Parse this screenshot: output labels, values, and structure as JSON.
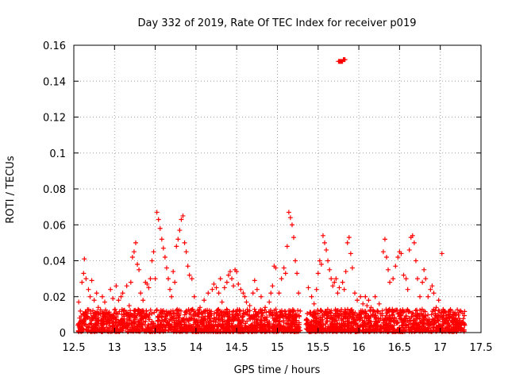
{
  "chart_data": {
    "type": "scatter",
    "title": "Day 332 of 2019, Rate Of TEC Index for receiver p019",
    "xlabel": "GPS time / hours",
    "ylabel": "ROTI / TECUs",
    "xlim": [
      12.5,
      17.5
    ],
    "ylim": [
      0,
      0.16
    ],
    "x_ticks": [
      12.5,
      13,
      13.5,
      14,
      14.5,
      15,
      15.5,
      16,
      16.5,
      17,
      17.5
    ],
    "x_tick_labels": [
      "12.5",
      "13",
      "13.5",
      "14",
      "14.5",
      "15",
      "15.5",
      "16",
      "16.5",
      "17",
      "17.5"
    ],
    "y_ticks": [
      0,
      0.02,
      0.04,
      0.06,
      0.08,
      0.1,
      0.12,
      0.14,
      0.16
    ],
    "y_tick_labels": [
      "0",
      "0.02",
      "0.04",
      "0.06",
      "0.08",
      "0.1",
      "0.12",
      "0.14",
      "0.16"
    ],
    "grid": true,
    "marker": "+",
    "color": "#ff0000",
    "series": [
      {
        "name": "ROTI",
        "points": [
          [
            12.56,
            0.017
          ],
          [
            12.58,
            0.012
          ],
          [
            12.6,
            0.028
          ],
          [
            12.62,
            0.033
          ],
          [
            12.63,
            0.041
          ],
          [
            12.65,
            0.03
          ],
          [
            12.68,
            0.024
          ],
          [
            12.7,
            0.02
          ],
          [
            12.72,
            0.029
          ],
          [
            12.75,
            0.018
          ],
          [
            12.78,
            0.022
          ],
          [
            12.8,
            0.014
          ],
          [
            12.85,
            0.02
          ],
          [
            12.88,
            0.017
          ],
          [
            12.9,
            0.011
          ],
          [
            12.95,
            0.024
          ],
          [
            12.98,
            0.019
          ],
          [
            13.02,
            0.026
          ],
          [
            13.05,
            0.018
          ],
          [
            13.08,
            0.02
          ],
          [
            13.1,
            0.022
          ],
          [
            13.15,
            0.026
          ],
          [
            13.18,
            0.015
          ],
          [
            13.2,
            0.028
          ],
          [
            13.22,
            0.042
          ],
          [
            13.24,
            0.045
          ],
          [
            13.26,
            0.05
          ],
          [
            13.28,
            0.038
          ],
          [
            13.3,
            0.035
          ],
          [
            13.32,
            0.022
          ],
          [
            13.35,
            0.018
          ],
          [
            13.38,
            0.028
          ],
          [
            13.4,
            0.027
          ],
          [
            13.42,
            0.025
          ],
          [
            13.44,
            0.03
          ],
          [
            13.46,
            0.04
          ],
          [
            13.48,
            0.045
          ],
          [
            13.5,
            0.03
          ],
          [
            13.52,
            0.067
          ],
          [
            13.54,
            0.063
          ],
          [
            13.56,
            0.058
          ],
          [
            13.58,
            0.052
          ],
          [
            13.6,
            0.047
          ],
          [
            13.62,
            0.042
          ],
          [
            13.64,
            0.036
          ],
          [
            13.66,
            0.03
          ],
          [
            13.68,
            0.024
          ],
          [
            13.7,
            0.02
          ],
          [
            13.72,
            0.034
          ],
          [
            13.74,
            0.028
          ],
          [
            13.76,
            0.048
          ],
          [
            13.78,
            0.052
          ],
          [
            13.8,
            0.057
          ],
          [
            13.82,
            0.063
          ],
          [
            13.84,
            0.065
          ],
          [
            13.86,
            0.05
          ],
          [
            13.88,
            0.045
          ],
          [
            13.9,
            0.037
          ],
          [
            13.92,
            0.032
          ],
          [
            13.95,
            0.03
          ],
          [
            13.98,
            0.02
          ],
          [
            14.05,
            0.014
          ],
          [
            14.1,
            0.018
          ],
          [
            14.15,
            0.022
          ],
          [
            14.2,
            0.024
          ],
          [
            14.22,
            0.027
          ],
          [
            14.25,
            0.025
          ],
          [
            14.28,
            0.022
          ],
          [
            14.3,
            0.03
          ],
          [
            14.32,
            0.017
          ],
          [
            14.35,
            0.025
          ],
          [
            14.38,
            0.028
          ],
          [
            14.4,
            0.032
          ],
          [
            14.42,
            0.034
          ],
          [
            14.44,
            0.03
          ],
          [
            14.46,
            0.026
          ],
          [
            14.48,
            0.035
          ],
          [
            14.5,
            0.034
          ],
          [
            14.52,
            0.027
          ],
          [
            14.55,
            0.024
          ],
          [
            14.58,
            0.022
          ],
          [
            14.6,
            0.02
          ],
          [
            14.62,
            0.017
          ],
          [
            14.66,
            0.015
          ],
          [
            14.7,
            0.022
          ],
          [
            14.72,
            0.029
          ],
          [
            14.75,
            0.024
          ],
          [
            14.8,
            0.02
          ],
          [
            14.85,
            0.014
          ],
          [
            14.9,
            0.017
          ],
          [
            14.92,
            0.022
          ],
          [
            14.94,
            0.026
          ],
          [
            14.96,
            0.037
          ],
          [
            14.98,
            0.036
          ],
          [
            15.02,
            0.022
          ],
          [
            15.05,
            0.03
          ],
          [
            15.08,
            0.036
          ],
          [
            15.1,
            0.033
          ],
          [
            15.12,
            0.048
          ],
          [
            15.14,
            0.067
          ],
          [
            15.16,
            0.064
          ],
          [
            15.18,
            0.06
          ],
          [
            15.2,
            0.053
          ],
          [
            15.22,
            0.04
          ],
          [
            15.24,
            0.033
          ],
          [
            15.26,
            0.022
          ],
          [
            15.28,
            0.012
          ],
          [
            15.38,
            0.025
          ],
          [
            15.42,
            0.02
          ],
          [
            15.45,
            0.016
          ],
          [
            15.48,
            0.024
          ],
          [
            15.5,
            0.033
          ],
          [
            15.52,
            0.04
          ],
          [
            15.54,
            0.038
          ],
          [
            15.56,
            0.054
          ],
          [
            15.58,
            0.05
          ],
          [
            15.6,
            0.046
          ],
          [
            15.62,
            0.04
          ],
          [
            15.64,
            0.035
          ],
          [
            15.66,
            0.03
          ],
          [
            15.68,
            0.026
          ],
          [
            15.7,
            0.028
          ],
          [
            15.72,
            0.03
          ],
          [
            15.74,
            0.022
          ],
          [
            15.76,
            0.025
          ],
          [
            15.8,
            0.028
          ],
          [
            15.82,
            0.024
          ],
          [
            15.84,
            0.034
          ],
          [
            15.86,
            0.05
          ],
          [
            15.88,
            0.053
          ],
          [
            15.9,
            0.044
          ],
          [
            15.92,
            0.036
          ],
          [
            15.95,
            0.022
          ],
          [
            15.98,
            0.018
          ],
          [
            16.02,
            0.02
          ],
          [
            16.05,
            0.016
          ],
          [
            16.08,
            0.02
          ],
          [
            16.1,
            0.015
          ],
          [
            16.12,
            0.018
          ],
          [
            16.15,
            0.014
          ],
          [
            16.18,
            0.012
          ],
          [
            16.2,
            0.02
          ],
          [
            16.25,
            0.016
          ],
          [
            16.3,
            0.045
          ],
          [
            16.32,
            0.052
          ],
          [
            16.34,
            0.042
          ],
          [
            16.36,
            0.035
          ],
          [
            16.38,
            0.028
          ],
          [
            16.42,
            0.03
          ],
          [
            16.45,
            0.037
          ],
          [
            16.48,
            0.042
          ],
          [
            16.5,
            0.045
          ],
          [
            16.52,
            0.044
          ],
          [
            16.55,
            0.032
          ],
          [
            16.58,
            0.03
          ],
          [
            16.6,
            0.024
          ],
          [
            16.62,
            0.046
          ],
          [
            16.64,
            0.053
          ],
          [
            16.66,
            0.054
          ],
          [
            16.68,
            0.05
          ],
          [
            16.7,
            0.04
          ],
          [
            16.72,
            0.03
          ],
          [
            16.75,
            0.02
          ],
          [
            16.78,
            0.028
          ],
          [
            16.8,
            0.035
          ],
          [
            16.82,
            0.03
          ],
          [
            16.85,
            0.02
          ],
          [
            16.88,
            0.024
          ],
          [
            16.9,
            0.026
          ],
          [
            16.92,
            0.022
          ],
          [
            16.95,
            0.014
          ],
          [
            16.98,
            0.018
          ],
          [
            17.02,
            0.044
          ],
          [
            17.05,
            0.012
          ],
          [
            17.1,
            0.01
          ],
          [
            17.15,
            0.008
          ],
          [
            17.2,
            0.006
          ],
          [
            17.25,
            0.005
          ],
          [
            17.3,
            0.004
          ],
          [
            15.75,
            0.151
          ],
          [
            15.76,
            0.151
          ],
          [
            15.77,
            0.151
          ],
          [
            15.78,
            0.151
          ],
          [
            15.79,
            0.151
          ],
          [
            15.8,
            0.151
          ],
          [
            15.81,
            0.152
          ],
          [
            15.82,
            0.152
          ],
          [
            15.83,
            0.152
          ]
        ],
        "dense_band": {
          "ranges": [
            [
              12.55,
              15.28
            ],
            [
              15.35,
              17.3
            ]
          ],
          "y_min": 0.0005,
          "y_max": 0.013
        }
      }
    ]
  }
}
